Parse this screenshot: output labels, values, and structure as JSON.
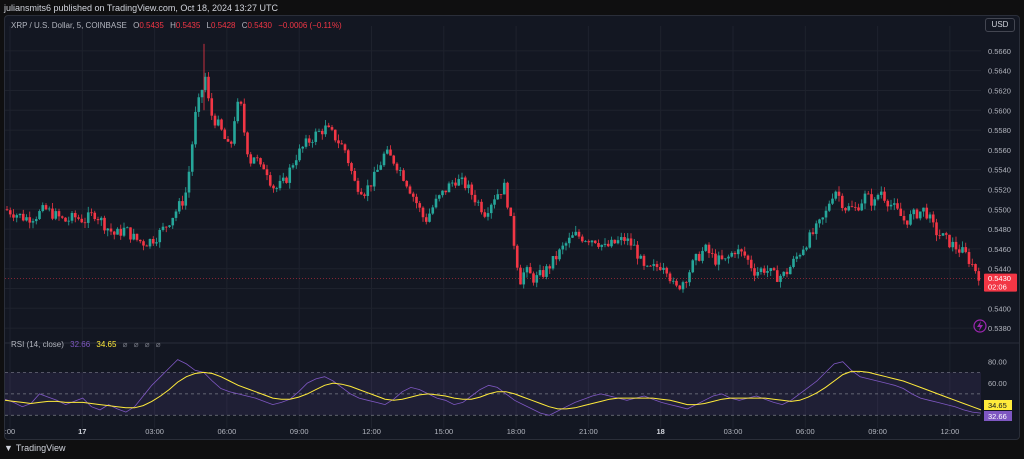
{
  "published": "juliansmits6 published on TradingView.com, Oct 18, 2024 13:27 UTC",
  "legend": {
    "symbol": "XRP / U.S. Dollar, 5, COINBASE",
    "o_label": "O",
    "o_value": "0.5435",
    "h_label": "H",
    "h_value": "0.5435",
    "l_label": "L",
    "l_value": "0.5428",
    "c_label": "C",
    "c_value": "0.5430",
    "change": "−0.0006 (−0.11%)"
  },
  "currency_button": "USD",
  "price_tag": {
    "price": "0.5430",
    "countdown": "02:06"
  },
  "rsi": {
    "label": "RSI (14, close)",
    "rsi_value": "32.66",
    "ma_value": "34.65",
    "icons": "⌀ ⌀ ⌀ ⌀"
  },
  "footer_brand": "TradingView",
  "colors": {
    "up": "#26a69a",
    "down": "#f23645",
    "rsi_line": "#7e57c2",
    "rsi_ma": "#ffeb3b",
    "background": "#131722",
    "grid": "#1e222d"
  },
  "chart_data": [
    {
      "type": "candlestick",
      "title": "XRP / U.S. Dollar, 5, COINBASE",
      "y_ticks": [
        "0.5380",
        "0.5400",
        "0.5420",
        "0.5440",
        "0.5460",
        "0.5480",
        "0.5500",
        "0.5520",
        "0.5540",
        "0.5560",
        "0.5580",
        "0.5600",
        "0.5620",
        "0.5640",
        "0.5660"
      ],
      "ylim": [
        0.537,
        0.5675
      ],
      "x_ticks": [
        ":00",
        "17",
        "03:00",
        "06:00",
        "09:00",
        "12:00",
        "15:00",
        "18:00",
        "21:00",
        "18",
        "03:00",
        "06:00",
        "09:00",
        "12:00"
      ],
      "last_price": 0.543,
      "close_path": [
        [
          0,
          0.55
        ],
        [
          10,
          0.5496
        ],
        [
          20,
          0.5491
        ],
        [
          30,
          0.5493
        ],
        [
          40,
          0.55
        ],
        [
          50,
          0.5494
        ],
        [
          60,
          0.5488
        ],
        [
          70,
          0.5492
        ],
        [
          80,
          0.5489
        ],
        [
          90,
          0.5496
        ],
        [
          100,
          0.5484
        ],
        [
          110,
          0.5474
        ],
        [
          120,
          0.548
        ],
        [
          130,
          0.547
        ],
        [
          140,
          0.5466
        ],
        [
          150,
          0.5471
        ],
        [
          160,
          0.5482
        ],
        [
          170,
          0.5497
        ],
        [
          180,
          0.5512
        ],
        [
          185,
          0.5545
        ],
        [
          190,
          0.5593
        ],
        [
          195,
          0.5612
        ],
        [
          200,
          0.5635
        ],
        [
          205,
          0.5598
        ],
        [
          210,
          0.559
        ],
        [
          215,
          0.5582
        ],
        [
          220,
          0.557
        ],
        [
          225,
          0.5558
        ],
        [
          230,
          0.5596
        ],
        [
          235,
          0.561
        ],
        [
          240,
          0.5573
        ],
        [
          245,
          0.5548
        ],
        [
          250,
          0.5556
        ],
        [
          255,
          0.554
        ],
        [
          260,
          0.5545
        ],
        [
          265,
          0.553
        ],
        [
          270,
          0.552
        ],
        [
          280,
          0.5528
        ],
        [
          290,
          0.5552
        ],
        [
          300,
          0.5565
        ],
        [
          310,
          0.5575
        ],
        [
          320,
          0.5582
        ],
        [
          330,
          0.5573
        ],
        [
          340,
          0.556
        ],
        [
          350,
          0.5526
        ],
        [
          360,
          0.5518
        ],
        [
          370,
          0.5533
        ],
        [
          380,
          0.5557
        ],
        [
          390,
          0.5548
        ],
        [
          400,
          0.5531
        ],
        [
          410,
          0.551
        ],
        [
          420,
          0.5488
        ],
        [
          430,
          0.5506
        ],
        [
          440,
          0.5519
        ],
        [
          450,
          0.553
        ],
        [
          460,
          0.5525
        ],
        [
          470,
          0.5511
        ],
        [
          480,
          0.5497
        ],
        [
          490,
          0.5514
        ],
        [
          500,
          0.5523
        ],
        [
          505,
          0.5492
        ],
        [
          510,
          0.546
        ],
        [
          515,
          0.5428
        ],
        [
          520,
          0.5438
        ],
        [
          530,
          0.5429
        ],
        [
          540,
          0.5437
        ],
        [
          550,
          0.545
        ],
        [
          560,
          0.5464
        ],
        [
          570,
          0.5474
        ],
        [
          580,
          0.5471
        ],
        [
          590,
          0.547
        ],
        [
          600,
          0.5461
        ],
        [
          610,
          0.5466
        ],
        [
          620,
          0.547
        ],
        [
          630,
          0.5461
        ],
        [
          640,
          0.5437
        ],
        [
          650,
          0.5441
        ],
        [
          660,
          0.5446
        ],
        [
          670,
          0.5418
        ],
        [
          680,
          0.543
        ],
        [
          690,
          0.5448
        ],
        [
          700,
          0.546
        ],
        [
          710,
          0.5449
        ],
        [
          720,
          0.5447
        ],
        [
          730,
          0.5459
        ],
        [
          740,
          0.5453
        ],
        [
          750,
          0.5437
        ],
        [
          760,
          0.544
        ],
        [
          770,
          0.5432
        ],
        [
          780,
          0.5434
        ],
        [
          790,
          0.5449
        ],
        [
          800,
          0.5465
        ],
        [
          810,
          0.5478
        ],
        [
          820,
          0.5493
        ],
        [
          825,
          0.551
        ],
        [
          830,
          0.5521
        ],
        [
          840,
          0.5502
        ],
        [
          850,
          0.55
        ],
        [
          860,
          0.5513
        ],
        [
          870,
          0.5506
        ],
        [
          875,
          0.5521
        ],
        [
          880,
          0.5512
        ],
        [
          890,
          0.55
        ],
        [
          900,
          0.5488
        ],
        [
          910,
          0.5495
        ],
        [
          920,
          0.55
        ],
        [
          930,
          0.5478
        ],
        [
          940,
          0.547
        ],
        [
          950,
          0.5462
        ],
        [
          960,
          0.5455
        ],
        [
          970,
          0.544
        ],
        [
          976,
          0.543
        ]
      ]
    },
    {
      "type": "line",
      "title": "RSI (14, close)",
      "y_ticks": [
        "80.00",
        "60.00"
      ],
      "ylim": [
        20,
        90
      ],
      "bands": {
        "upper": 70,
        "middle": 50,
        "lower": 30
      },
      "series": [
        {
          "name": "RSI",
          "values": [
            45,
            42,
            38,
            41,
            50,
            47,
            44,
            40,
            43,
            46,
            38,
            35,
            40,
            36,
            33,
            38,
            48,
            58,
            66,
            74,
            82,
            78,
            72,
            70,
            62,
            55,
            52,
            50,
            48,
            46,
            43,
            40,
            42,
            45,
            52,
            60,
            64,
            66,
            62,
            56,
            50,
            46,
            44,
            42,
            40,
            45,
            52,
            56,
            54,
            50,
            46,
            44,
            40,
            42,
            48,
            54,
            58,
            56,
            50,
            44,
            40,
            36,
            32,
            30,
            34,
            38,
            42,
            45,
            48,
            50,
            48,
            46,
            44,
            46,
            48,
            45,
            42,
            40,
            38,
            36,
            40,
            44,
            48,
            50,
            46,
            44,
            46,
            48,
            45,
            42,
            40,
            44,
            50,
            56,
            62,
            70,
            78,
            80,
            72,
            66,
            64,
            62,
            60,
            58,
            55,
            50,
            46,
            44,
            42,
            40,
            38,
            35,
            33,
            32
          ]
        },
        {
          "name": "RSI-based MA",
          "values": [
            44,
            43,
            42,
            41,
            42,
            43,
            43,
            42,
            42,
            42,
            41,
            40,
            39,
            38,
            37,
            37,
            39,
            43,
            48,
            54,
            61,
            66,
            69,
            70,
            69,
            66,
            62,
            58,
            55,
            52,
            49,
            46,
            45,
            45,
            47,
            50,
            54,
            58,
            60,
            59,
            57,
            54,
            51,
            48,
            45,
            44,
            45,
            47,
            49,
            50,
            49,
            48,
            46,
            45,
            45,
            47,
            50,
            52,
            52,
            50,
            47,
            44,
            41,
            38,
            36,
            36,
            37,
            39,
            41,
            43,
            45,
            46,
            46,
            46,
            46,
            46,
            45,
            44,
            42,
            40,
            40,
            41,
            43,
            45,
            46,
            46,
            46,
            46,
            46,
            45,
            44,
            43,
            44,
            47,
            51,
            56,
            62,
            68,
            71,
            71,
            70,
            68,
            66,
            64,
            62,
            59,
            56,
            53,
            50,
            47,
            44,
            41,
            38,
            35
          ]
        }
      ]
    }
  ]
}
